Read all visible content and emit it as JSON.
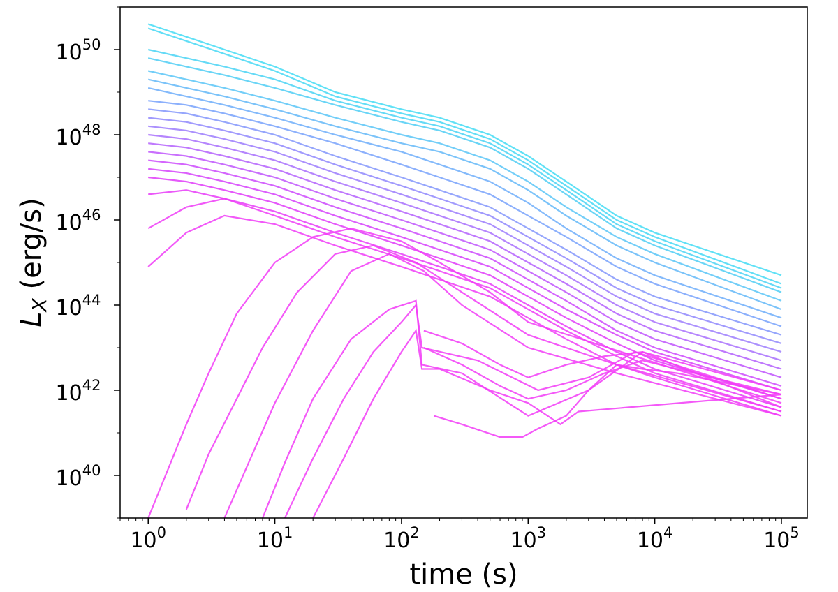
{
  "chart_data": {
    "type": "line",
    "title": "",
    "xlabel": "time (s)",
    "ylabel_main": "L",
    "ylabel_sub": "X",
    "ylabel_unit": " (erg/s)",
    "x_scale": "log",
    "y_scale": "log",
    "xlim": [
      0.6,
      160000
    ],
    "ylim": [
      1e+39,
      1e+51
    ],
    "grid": false,
    "legend": "none",
    "x_tick_labels": [
      {
        "base": "10",
        "exp": "0"
      },
      {
        "base": "10",
        "exp": "1"
      },
      {
        "base": "10",
        "exp": "2"
      },
      {
        "base": "10",
        "exp": "3"
      },
      {
        "base": "10",
        "exp": "4"
      },
      {
        "base": "10",
        "exp": "5"
      }
    ],
    "y_tick_labels": [
      {
        "base": "10",
        "exp": "40"
      },
      {
        "base": "10",
        "exp": "42"
      },
      {
        "base": "10",
        "exp": "44"
      },
      {
        "base": "10",
        "exp": "46"
      },
      {
        "base": "10",
        "exp": "48"
      },
      {
        "base": "10",
        "exp": "50"
      }
    ],
    "colors": {
      "cyan": "#33e0f5",
      "blue": "#7f8dff",
      "magenta": "#f23cf7"
    },
    "series": [
      {
        "color": "#44dcf4",
        "x": [
          1,
          2,
          4,
          10,
          30,
          100,
          200,
          500,
          1000,
          2000,
          5000,
          10000,
          100000
        ],
        "y": [
          50.6,
          50.3,
          50.0,
          49.6,
          49.0,
          48.6,
          48.4,
          48.0,
          47.5,
          46.9,
          46.1,
          45.7,
          44.7
        ]
      },
      {
        "color": "#47d8f4",
        "x": [
          1,
          2,
          4,
          10,
          30,
          100,
          200,
          500,
          1000,
          2000,
          5000,
          10000,
          100000
        ],
        "y": [
          50.5,
          50.2,
          49.9,
          49.5,
          48.9,
          48.5,
          48.3,
          47.9,
          47.4,
          46.8,
          46.0,
          45.6,
          44.5
        ]
      },
      {
        "color": "#4ad4f5",
        "x": [
          1,
          2,
          4,
          10,
          30,
          100,
          200,
          500,
          1000,
          2000,
          5000,
          10000,
          100000
        ],
        "y": [
          50.0,
          49.8,
          49.6,
          49.3,
          48.8,
          48.4,
          48.2,
          47.8,
          47.3,
          46.7,
          45.9,
          45.5,
          44.4
        ]
      },
      {
        "color": "#50cef5",
        "x": [
          1,
          2,
          4,
          10,
          30,
          100,
          200,
          500,
          1000,
          2000,
          5000,
          10000,
          100000
        ],
        "y": [
          49.8,
          49.6,
          49.4,
          49.1,
          48.7,
          48.3,
          48.1,
          47.7,
          47.2,
          46.6,
          45.8,
          45.4,
          44.3
        ]
      },
      {
        "color": "#5ac6f7",
        "x": [
          1,
          2,
          4,
          10,
          30,
          100,
          200,
          500,
          1000,
          2000,
          5000,
          10000,
          100000
        ],
        "y": [
          49.5,
          49.3,
          49.1,
          48.8,
          48.4,
          48.0,
          47.8,
          47.4,
          46.9,
          46.3,
          45.6,
          45.2,
          44.1
        ]
      },
      {
        "color": "#64b8f8",
        "x": [
          1,
          2,
          4,
          10,
          30,
          100,
          200,
          500,
          1000,
          2000,
          5000,
          10000,
          100000
        ],
        "y": [
          49.3,
          49.1,
          48.9,
          48.6,
          48.2,
          47.8,
          47.6,
          47.2,
          46.7,
          46.1,
          45.4,
          45.0,
          43.9
        ]
      },
      {
        "color": "#6eaefa",
        "x": [
          1,
          2,
          4,
          10,
          30,
          100,
          200,
          500,
          1000,
          2000,
          5000,
          10000,
          100000
        ],
        "y": [
          49.1,
          48.9,
          48.7,
          48.4,
          48.0,
          47.6,
          47.3,
          46.9,
          46.4,
          45.8,
          45.1,
          44.7,
          43.7
        ]
      },
      {
        "color": "#78a2fb",
        "x": [
          1,
          2,
          4,
          10,
          30,
          100,
          200,
          500,
          1000,
          2000,
          5000,
          10000,
          100000
        ],
        "y": [
          48.8,
          48.7,
          48.5,
          48.2,
          47.8,
          47.3,
          47.0,
          46.6,
          46.1,
          45.6,
          44.9,
          44.5,
          43.5
        ]
      },
      {
        "color": "#8496fc",
        "x": [
          1,
          2,
          4,
          10,
          30,
          100,
          200,
          500,
          1000,
          2000,
          5000,
          10000,
          100000
        ],
        "y": [
          48.6,
          48.5,
          48.3,
          48.0,
          47.5,
          47.0,
          46.7,
          46.3,
          45.8,
          45.3,
          44.6,
          44.2,
          43.3
        ]
      },
      {
        "color": "#9088fd",
        "x": [
          1,
          2,
          4,
          10,
          30,
          100,
          200,
          500,
          1000,
          2000,
          5000,
          10000,
          100000
        ],
        "y": [
          48.4,
          48.3,
          48.1,
          47.8,
          47.3,
          46.8,
          46.5,
          46.1,
          45.6,
          45.1,
          44.4,
          44.0,
          43.1
        ]
      },
      {
        "color": "#9c7cfd",
        "x": [
          1,
          2,
          4,
          10,
          30,
          100,
          200,
          500,
          1000,
          2000,
          5000,
          10000,
          100000
        ],
        "y": [
          48.2,
          48.1,
          47.9,
          47.6,
          47.1,
          46.6,
          46.3,
          45.9,
          45.4,
          44.9,
          44.2,
          43.8,
          42.9
        ]
      },
      {
        "color": "#a870fd",
        "x": [
          1,
          2,
          4,
          10,
          30,
          100,
          200,
          500,
          1000,
          2000,
          5000,
          10000,
          100000
        ],
        "y": [
          48.0,
          47.9,
          47.7,
          47.4,
          46.9,
          46.4,
          46.1,
          45.7,
          45.2,
          44.7,
          44.0,
          43.6,
          42.7
        ]
      },
      {
        "color": "#b462fd",
        "x": [
          1,
          2,
          4,
          10,
          30,
          100,
          200,
          500,
          1000,
          2000,
          5000,
          10000,
          100000
        ],
        "y": [
          47.8,
          47.7,
          47.5,
          47.2,
          46.7,
          46.2,
          45.9,
          45.5,
          45.0,
          44.5,
          43.8,
          43.4,
          42.5
        ]
      },
      {
        "color": "#c056fd",
        "x": [
          1,
          2,
          4,
          10,
          30,
          100,
          200,
          500,
          1000,
          2000,
          5000,
          10000,
          100000
        ],
        "y": [
          47.6,
          47.5,
          47.3,
          47.0,
          46.5,
          46.0,
          45.7,
          45.3,
          44.8,
          44.3,
          43.6,
          43.2,
          42.3
        ]
      },
      {
        "color": "#cc4afd",
        "x": [
          1,
          2,
          4,
          10,
          30,
          100,
          200,
          500,
          1000,
          2000,
          5000,
          10000,
          100000
        ],
        "y": [
          47.4,
          47.3,
          47.1,
          46.8,
          46.3,
          45.8,
          45.5,
          45.1,
          44.6,
          44.1,
          43.4,
          43.0,
          42.1
        ]
      },
      {
        "color": "#d642fb",
        "x": [
          1,
          2,
          4,
          10,
          30,
          100,
          200,
          500,
          1000,
          2000,
          5000,
          10000,
          100000
        ],
        "y": [
          47.2,
          47.1,
          46.9,
          46.6,
          46.1,
          45.6,
          45.3,
          44.9,
          44.4,
          43.9,
          43.3,
          42.9,
          42.0
        ]
      },
      {
        "color": "#e03cf9",
        "x": [
          1,
          2,
          4,
          10,
          30,
          100,
          200,
          500,
          1000,
          2000,
          5000,
          10000,
          100000
        ],
        "y": [
          47.0,
          46.9,
          46.7,
          46.4,
          45.9,
          45.4,
          45.1,
          44.7,
          44.2,
          43.7,
          43.1,
          42.7,
          41.8
        ]
      },
      {
        "color": "#e83cf8",
        "x": [
          1,
          2,
          4,
          10,
          30,
          100,
          200,
          500,
          1000,
          2000,
          5000,
          10000,
          100000
        ],
        "y": [
          46.6,
          46.7,
          46.5,
          46.2,
          45.7,
          45.2,
          44.9,
          44.5,
          44.0,
          43.5,
          42.9,
          42.5,
          41.6
        ]
      },
      {
        "color": "#ee3cf7",
        "x": [
          1,
          2,
          4,
          10,
          30,
          100,
          200,
          500,
          1000,
          2000,
          5000,
          10000,
          100000
        ],
        "y": [
          45.8,
          46.3,
          46.5,
          46.1,
          45.6,
          45.1,
          44.8,
          44.4,
          43.9,
          43.4,
          42.8,
          42.4,
          41.5
        ]
      },
      {
        "color": "#f03cf7",
        "x": [
          1,
          2,
          4,
          10,
          30,
          100,
          200,
          500,
          1000,
          2000,
          5000,
          10000,
          100000
        ],
        "y": [
          44.9,
          45.7,
          46.1,
          45.9,
          45.4,
          44.9,
          44.6,
          44.2,
          43.7,
          43.2,
          42.6,
          42.3,
          41.4
        ]
      },
      {
        "color": "#f23cf7",
        "x": [
          1,
          2,
          3,
          5,
          10,
          20,
          40,
          100,
          200,
          500,
          1000,
          100000
        ],
        "y": [
          39.0,
          41.2,
          42.4,
          43.8,
          45.0,
          45.6,
          45.8,
          45.5,
          45.0,
          44.3,
          43.6,
          41.7
        ]
      },
      {
        "color": "#f23cf7",
        "x": [
          2,
          3,
          5,
          8,
          15,
          30,
          60,
          130,
          300,
          1000,
          5000,
          100000
        ],
        "y": [
          39.2,
          40.5,
          41.8,
          43.0,
          44.3,
          45.2,
          45.4,
          45.0,
          44.3,
          43.3,
          42.6,
          41.5
        ]
      },
      {
        "color": "#f23cf7",
        "x": [
          4,
          6,
          10,
          20,
          40,
          80,
          150,
          300,
          1000,
          5000,
          100000
        ],
        "y": [
          39.0,
          40.2,
          41.7,
          43.4,
          44.8,
          45.2,
          44.8,
          44.0,
          43.0,
          42.4,
          41.4
        ]
      },
      {
        "color": "#f23cf7",
        "x": [
          8,
          12,
          20,
          40,
          80,
          130,
          145,
          300,
          1000,
          3000,
          8000,
          100000
        ],
        "y": [
          39.0,
          40.3,
          41.8,
          43.2,
          43.9,
          44.1,
          42.6,
          42.4,
          41.4,
          42.0,
          42.9,
          41.6
        ]
      },
      {
        "color": "#f23cf7",
        "x": [
          12,
          20,
          35,
          60,
          100,
          130,
          145,
          400,
          1200,
          3000,
          7000,
          100000
        ],
        "y": [
          39.0,
          40.4,
          41.8,
          42.9,
          43.6,
          44.0,
          43.0,
          42.7,
          42.0,
          42.3,
          42.9,
          41.8
        ]
      },
      {
        "color": "#f23cf7",
        "x": [
          20,
          35,
          60,
          100,
          130,
          145,
          200,
          500,
          1000,
          1800,
          2500,
          100000
        ],
        "y": [
          39.0,
          40.4,
          41.8,
          42.9,
          43.4,
          42.5,
          42.5,
          42.0,
          41.7,
          41.2,
          41.5,
          41.9
        ]
      },
      {
        "color": "#f23cf7",
        "x": [
          180,
          300,
          600,
          900,
          1200,
          2000,
          3000,
          5000,
          8000,
          15000,
          100000
        ],
        "y": [
          41.4,
          41.2,
          40.9,
          40.9,
          41.1,
          41.4,
          42.0,
          42.6,
          42.5,
          42.4,
          41.9
        ]
      },
      {
        "color": "#f23cf7",
        "x": [
          150,
          300,
          600,
          1000,
          2000,
          4000,
          8000,
          100000
        ],
        "y": [
          43.4,
          43.1,
          42.6,
          42.3,
          42.6,
          42.8,
          42.9,
          42.0
        ]
      },
      {
        "color": "#f23cf7",
        "x": [
          150,
          300,
          600,
          1000,
          2000,
          4000,
          8000,
          100000
        ],
        "y": [
          43.0,
          42.6,
          42.1,
          41.8,
          42.0,
          42.4,
          42.7,
          41.9
        ]
      }
    ]
  }
}
